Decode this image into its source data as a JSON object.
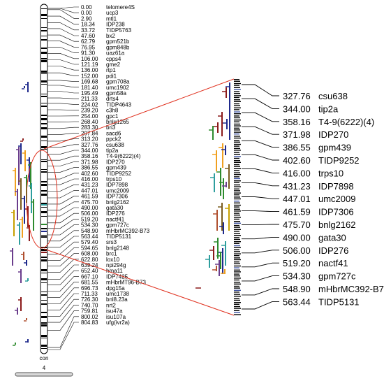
{
  "chromosome": {
    "label": "con",
    "number": "4",
    "markers": [
      {
        "pos": "0.00",
        "name": "telomere4S"
      },
      {
        "pos": "0.00",
        "name": "ucp3"
      },
      {
        "pos": "2.90",
        "name": "mtl1"
      },
      {
        "pos": "18.34",
        "name": "IDP238"
      },
      {
        "pos": "33.72",
        "name": "TIDP5763"
      },
      {
        "pos": "47.60",
        "name": "bx2"
      },
      {
        "pos": "62.79",
        "name": "gpm521b"
      },
      {
        "pos": "76.95",
        "name": "gpm848b"
      },
      {
        "pos": "91.30",
        "name": "uaz61a"
      },
      {
        "pos": "106.00",
        "name": "cpps4"
      },
      {
        "pos": "121.19",
        "name": "gme2"
      },
      {
        "pos": "136.00",
        "name": "rtp1"
      },
      {
        "pos": "152.00",
        "name": "pdi1"
      },
      {
        "pos": "169.68",
        "name": "gpm708a"
      },
      {
        "pos": "181.40",
        "name": "umc1902"
      },
      {
        "pos": "195.49",
        "name": "gpm58a"
      },
      {
        "pos": "211.33",
        "name": "drts4"
      },
      {
        "pos": "224.02",
        "name": "TIDP4643"
      },
      {
        "pos": "239.20",
        "name": "c3h8"
      },
      {
        "pos": "254.00",
        "name": "gpc1"
      },
      {
        "pos": "268.40",
        "name": "bnlg1265"
      },
      {
        "pos": "283.30",
        "name": "bri3"
      },
      {
        "pos": "297.84",
        "name": "sacd6"
      },
      {
        "pos": "313.20",
        "name": "ppck2"
      },
      {
        "pos": "327.76",
        "name": "csu638"
      },
      {
        "pos": "344.00",
        "name": "tip2a"
      },
      {
        "pos": "358.16",
        "name": "T4-9(6222)(4)"
      },
      {
        "pos": "371.98",
        "name": "IDP270"
      },
      {
        "pos": "386.55",
        "name": "gpm439"
      },
      {
        "pos": "402.60",
        "name": "TIDP9252"
      },
      {
        "pos": "416.00",
        "name": "trps10"
      },
      {
        "pos": "431.23",
        "name": "IDP7898"
      },
      {
        "pos": "447.01",
        "name": "umc2009"
      },
      {
        "pos": "461.59",
        "name": "IDP7306"
      },
      {
        "pos": "475.70",
        "name": "bnlg2162"
      },
      {
        "pos": "490.00",
        "name": "gata30"
      },
      {
        "pos": "506.00",
        "name": "IDP276"
      },
      {
        "pos": "519.20",
        "name": "nactf41"
      },
      {
        "pos": "534.30",
        "name": "gpm727c"
      },
      {
        "pos": "548.90",
        "name": "mHbrMC392-B73"
      },
      {
        "pos": "563.44",
        "name": "TIDP5131"
      },
      {
        "pos": "579.40",
        "name": "srs3"
      },
      {
        "pos": "594.65",
        "name": "bnlg2148"
      },
      {
        "pos": "608.00",
        "name": "brc1"
      },
      {
        "pos": "622.80",
        "name": "lox10"
      },
      {
        "pos": "639.24",
        "name": "npi294g"
      },
      {
        "pos": "652.40",
        "name": "hma11"
      },
      {
        "pos": "667.10",
        "name": "IDP7425"
      },
      {
        "pos": "681.55",
        "name": "mHbrMT96-B73"
      },
      {
        "pos": "696.73",
        "name": "dpg15a"
      },
      {
        "pos": "711.33",
        "name": "umc1738"
      },
      {
        "pos": "726.30",
        "name": "bnl8.23a"
      },
      {
        "pos": "740.70",
        "name": "nrt2"
      },
      {
        "pos": "759.81",
        "name": "isu47a"
      },
      {
        "pos": "800.02",
        "name": "isu107a"
      },
      {
        "pos": "804.83",
        "name": "ufg(ivr2a)"
      }
    ]
  },
  "zoom": {
    "markers": [
      {
        "pos": "327.76",
        "name": "csu638"
      },
      {
        "pos": "344.00",
        "name": "tip2a"
      },
      {
        "pos": "358.16",
        "name": "T4-9(6222)(4)"
      },
      {
        "pos": "371.98",
        "name": "IDP270"
      },
      {
        "pos": "386.55",
        "name": "gpm439"
      },
      {
        "pos": "402.60",
        "name": "TIDP9252"
      },
      {
        "pos": "416.00",
        "name": "trps10"
      },
      {
        "pos": "431.23",
        "name": "IDP7898"
      },
      {
        "pos": "447.01",
        "name": "umc2009"
      },
      {
        "pos": "461.59",
        "name": "IDP7306"
      },
      {
        "pos": "475.70",
        "name": "bnlg2162"
      },
      {
        "pos": "490.00",
        "name": "gata30"
      },
      {
        "pos": "506.00",
        "name": "IDP276"
      },
      {
        "pos": "519.20",
        "name": "nactf41"
      },
      {
        "pos": "534.30",
        "name": "gpm727c"
      },
      {
        "pos": "548.90",
        "name": "mHbrMC392-B73"
      },
      {
        "pos": "563.44",
        "name": "TIDP5131"
      }
    ]
  },
  "colors": {
    "highlight": "#e0301e",
    "chromosome_line": "#000000",
    "qtl": [
      "#1f2a8c",
      "#f0a020",
      "#2e8b2e",
      "#8b1a1a",
      "#7a5c1e",
      "#2e9e9e",
      "#6a3d8c",
      "#c8a000",
      "#b05030"
    ]
  }
}
